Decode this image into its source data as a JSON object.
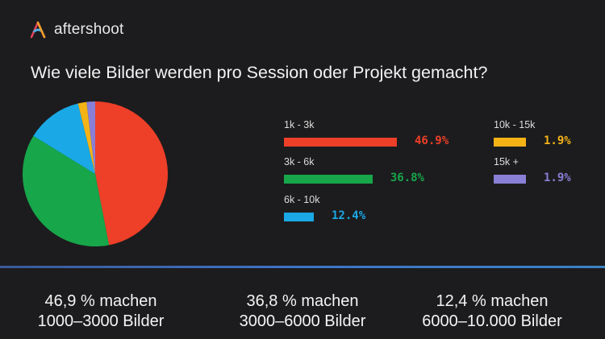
{
  "brand": {
    "name": "aftershoot",
    "icon": "aftershoot-logo-icon"
  },
  "question": "Wie viele Bilder werden pro Session oder Projekt gemacht?",
  "chart_data": {
    "type": "pie",
    "title": "Wie viele Bilder werden pro Session oder Projekt gemacht?",
    "categories": [
      "1k - 3k",
      "3k - 6k",
      "6k - 10k",
      "10k - 15k",
      "15k +"
    ],
    "values": [
      46.9,
      36.8,
      12.4,
      1.9,
      1.9
    ],
    "value_labels": [
      "46.9%",
      "36.8%",
      "12.4%",
      "1.9%",
      "1.9%"
    ],
    "colors": [
      "#ee3f28",
      "#17a64a",
      "#1aa9e6",
      "#f5b316",
      "#8a7fd6"
    ],
    "legend_placement": "right"
  },
  "stats": [
    {
      "line1": "46,9 % machen",
      "line2": "1000–3000 Bilder"
    },
    {
      "line1": "36,8 % machen",
      "line2": "3000–6000 Bilder"
    },
    {
      "line1": "12,4 % machen",
      "line2": "6000–10.000 Bilder"
    }
  ]
}
